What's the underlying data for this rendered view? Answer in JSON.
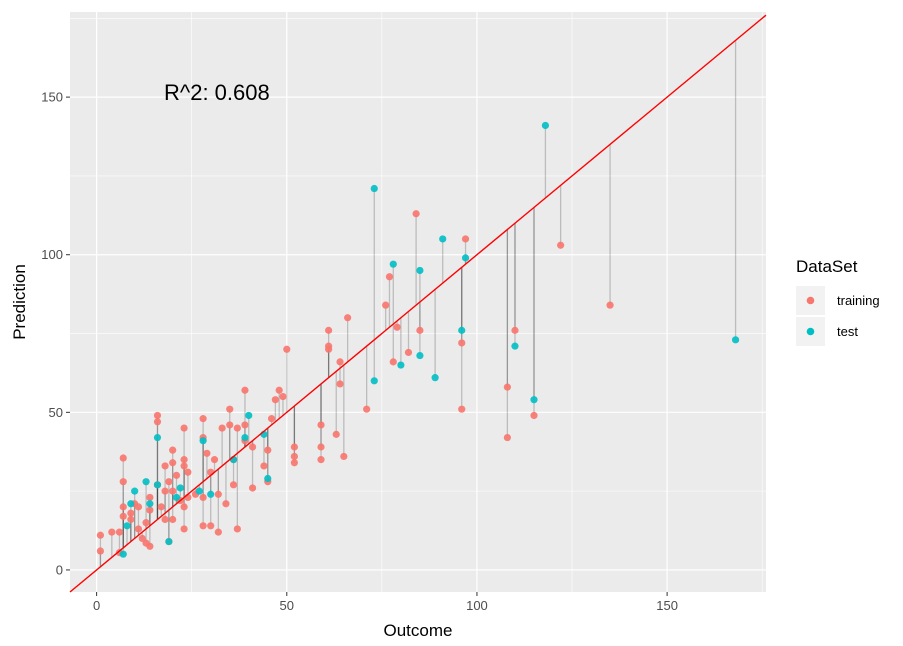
{
  "chart_data": {
    "type": "scatter",
    "xlabel": "Outcome",
    "ylabel": "Prediction",
    "xlim": [
      -7,
      176
    ],
    "ylim": [
      -7,
      177
    ],
    "x_ticks": [
      0,
      50,
      100,
      150
    ],
    "y_ticks": [
      0,
      50,
      100,
      150
    ],
    "x_tick_labels": [
      "0",
      "50",
      "100",
      "150"
    ],
    "y_tick_labels": [
      "0",
      "50",
      "100",
      "150"
    ],
    "annotation": "R^2: 0.608",
    "legend": {
      "title": "DataSet",
      "position": "right",
      "entries": [
        {
          "label": "training",
          "color": "#F8766D"
        },
        {
          "label": "test",
          "color": "#00BFC4"
        }
      ]
    },
    "reference_line": {
      "slope": 1,
      "intercept": 0,
      "color": "#FF0000"
    },
    "grid": true,
    "background": "#EBEBEB",
    "series": [
      {
        "name": "training",
        "color": "#F8766D",
        "points": [
          [
            1,
            6
          ],
          [
            1,
            11
          ],
          [
            4,
            12
          ],
          [
            6,
            5.5
          ],
          [
            6,
            12
          ],
          [
            7,
            35.5
          ],
          [
            7,
            28
          ],
          [
            7,
            20
          ],
          [
            7,
            17
          ],
          [
            9,
            18
          ],
          [
            9,
            16
          ],
          [
            10,
            21
          ],
          [
            11,
            20
          ],
          [
            11,
            13
          ],
          [
            12,
            10
          ],
          [
            13,
            8.5
          ],
          [
            13,
            15
          ],
          [
            14,
            7.5
          ],
          [
            14,
            23
          ],
          [
            14,
            19
          ],
          [
            16,
            49
          ],
          [
            16,
            47
          ],
          [
            16,
            27
          ],
          [
            17,
            20
          ],
          [
            18,
            33
          ],
          [
            18,
            25
          ],
          [
            18,
            16
          ],
          [
            19,
            28
          ],
          [
            19,
            9
          ],
          [
            20,
            34
          ],
          [
            20,
            25
          ],
          [
            20,
            38
          ],
          [
            20,
            16
          ],
          [
            21,
            30
          ],
          [
            22,
            22
          ],
          [
            23,
            45
          ],
          [
            23,
            35
          ],
          [
            23,
            33
          ],
          [
            23,
            20
          ],
          [
            23,
            13
          ],
          [
            24,
            31
          ],
          [
            24,
            23
          ],
          [
            26,
            24
          ],
          [
            28,
            48
          ],
          [
            28,
            42
          ],
          [
            28,
            23
          ],
          [
            28,
            14
          ],
          [
            29,
            37
          ],
          [
            30,
            31
          ],
          [
            30,
            14
          ],
          [
            31,
            35
          ],
          [
            32,
            24
          ],
          [
            32,
            12
          ],
          [
            33,
            45
          ],
          [
            34,
            21
          ],
          [
            35,
            51
          ],
          [
            35,
            46
          ],
          [
            36,
            35
          ],
          [
            36,
            27
          ],
          [
            37,
            45
          ],
          [
            37,
            13
          ],
          [
            39,
            57
          ],
          [
            39,
            46
          ],
          [
            39,
            41
          ],
          [
            41,
            39
          ],
          [
            41,
            26
          ],
          [
            44,
            33
          ],
          [
            45,
            28
          ],
          [
            45,
            38
          ],
          [
            46,
            48
          ],
          [
            47,
            54
          ],
          [
            48,
            57
          ],
          [
            49,
            55
          ],
          [
            50,
            70
          ],
          [
            52,
            39
          ],
          [
            52,
            36
          ],
          [
            52,
            34
          ],
          [
            59,
            46
          ],
          [
            59,
            39
          ],
          [
            59,
            35
          ],
          [
            61,
            76
          ],
          [
            61,
            71
          ],
          [
            61,
            70
          ],
          [
            63,
            43
          ],
          [
            64,
            66
          ],
          [
            64,
            59
          ],
          [
            65,
            36
          ],
          [
            66,
            80
          ],
          [
            71,
            51
          ],
          [
            76,
            84
          ],
          [
            77,
            93
          ],
          [
            78,
            66
          ],
          [
            79,
            77
          ],
          [
            82,
            69
          ],
          [
            84,
            113
          ],
          [
            85,
            76
          ],
          [
            96,
            51
          ],
          [
            96,
            72
          ],
          [
            97,
            105
          ],
          [
            108,
            58
          ],
          [
            108,
            42
          ],
          [
            110,
            76
          ],
          [
            115,
            49
          ],
          [
            122,
            103
          ],
          [
            135,
            84
          ]
        ]
      },
      {
        "name": "test",
        "color": "#00BFC4",
        "points": [
          [
            7,
            5
          ],
          [
            8,
            14
          ],
          [
            9,
            21
          ],
          [
            10,
            25
          ],
          [
            13,
            28
          ],
          [
            14,
            21
          ],
          [
            16,
            42
          ],
          [
            16,
            27
          ],
          [
            19,
            9
          ],
          [
            21,
            23
          ],
          [
            22,
            26
          ],
          [
            27,
            25
          ],
          [
            28,
            41
          ],
          [
            30,
            24
          ],
          [
            36,
            35
          ],
          [
            39,
            42
          ],
          [
            40,
            49
          ],
          [
            44,
            43
          ],
          [
            45,
            29
          ],
          [
            73,
            121
          ],
          [
            73,
            60
          ],
          [
            78,
            97
          ],
          [
            80,
            65
          ],
          [
            85,
            95
          ],
          [
            85,
            68
          ],
          [
            89,
            61
          ],
          [
            91,
            105
          ],
          [
            96,
            76
          ],
          [
            97,
            99
          ],
          [
            110,
            71
          ],
          [
            115,
            54
          ],
          [
            118,
            141
          ],
          [
            168,
            73
          ]
        ]
      }
    ]
  }
}
